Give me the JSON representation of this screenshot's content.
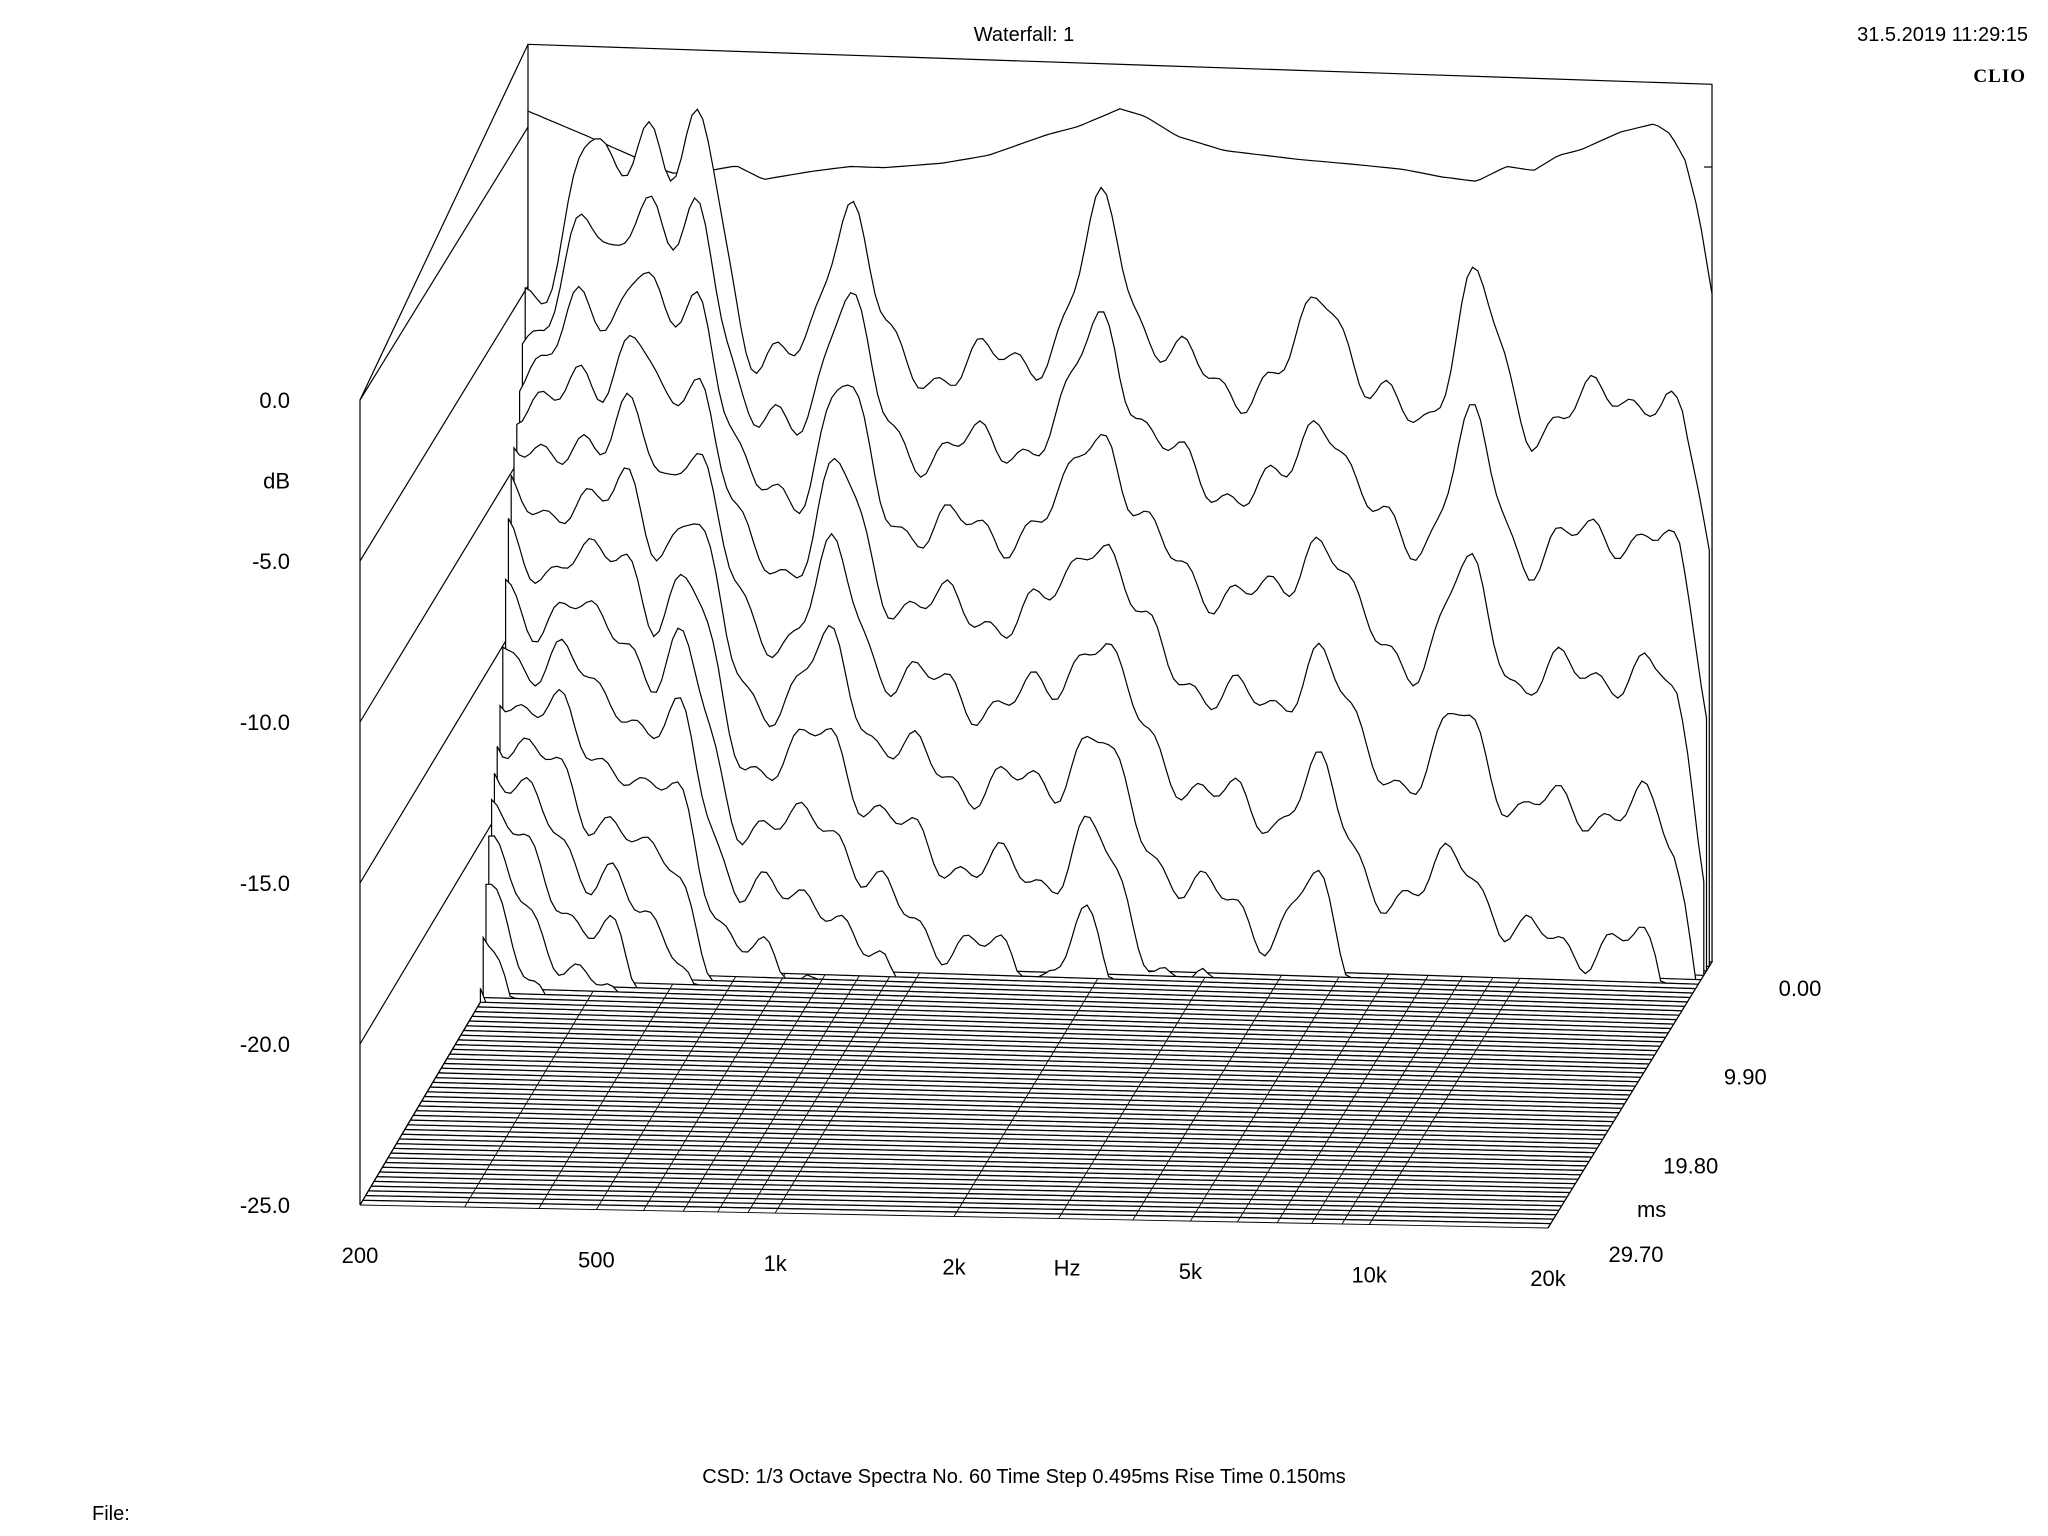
{
  "header": {
    "title": "Waterfall: 1",
    "timestamp": "31.5.2019 11:29:15",
    "brand": "CLIO"
  },
  "footer": {
    "info": "CSD:   1/3 Octave   Spectra No. 60   Time Step 0.495ms   Rise Time 0.150ms",
    "file_label": "File:"
  },
  "chart_data": {
    "type": "waterfall",
    "title": "Waterfall: 1",
    "x_axis": {
      "label": "Hz",
      "scale": "log",
      "range": [
        200,
        20000
      ],
      "ticks": [
        {
          "value": 200,
          "label": "200"
        },
        {
          "value": 500,
          "label": "500"
        },
        {
          "value": 1000,
          "label": "1k"
        },
        {
          "value": 2000,
          "label": "2k"
        },
        {
          "value": 5000,
          "label": "5k"
        },
        {
          "value": 10000,
          "label": "10k"
        },
        {
          "value": 20000,
          "label": "20k"
        }
      ]
    },
    "y_axis": {
      "label": "dB",
      "range": [
        -25,
        0
      ],
      "ticks": [
        {
          "value": 0,
          "label": "0.0"
        },
        {
          "value": -5,
          "label": "-5.0"
        },
        {
          "value": -10,
          "label": "-10.0"
        },
        {
          "value": -15,
          "label": "-15.0"
        },
        {
          "value": -20,
          "label": "-20.0"
        },
        {
          "value": -25,
          "label": "-25.0"
        }
      ]
    },
    "z_axis": {
      "label": "ms",
      "range": [
        0,
        29.7
      ],
      "ticks": [
        {
          "value": 0,
          "label": "0.00"
        },
        {
          "value": 9.9,
          "label": "9.90"
        },
        {
          "value": 19.8,
          "label": "19.80"
        },
        {
          "value": 29.7,
          "label": "29.70"
        }
      ]
    },
    "spectra_count": 60,
    "time_step_ms": 0.495,
    "rise_time_ms": 0.15,
    "smoothing": "1/3 Octave",
    "first_spectrum_db": [
      {
        "f": 200,
        "db": 0.5
      },
      {
        "f": 250,
        "db": -0.2
      },
      {
        "f": 300,
        "db": -0.8
      },
      {
        "f": 350,
        "db": -1.3
      },
      {
        "f": 400,
        "db": -1.2
      },
      {
        "f": 450,
        "db": -1.0
      },
      {
        "f": 500,
        "db": -1.4
      },
      {
        "f": 600,
        "db": -1.1
      },
      {
        "f": 700,
        "db": -0.9
      },
      {
        "f": 800,
        "db": -0.9
      },
      {
        "f": 1000,
        "db": -0.7
      },
      {
        "f": 1200,
        "db": -0.4
      },
      {
        "f": 1500,
        "db": 0.3
      },
      {
        "f": 1700,
        "db": 0.6
      },
      {
        "f": 2000,
        "db": 1.2
      },
      {
        "f": 2200,
        "db": 1.0
      },
      {
        "f": 2500,
        "db": 0.4
      },
      {
        "f": 3000,
        "db": 0.0
      },
      {
        "f": 4000,
        "db": -0.2
      },
      {
        "f": 5000,
        "db": -0.3
      },
      {
        "f": 6000,
        "db": -0.4
      },
      {
        "f": 7000,
        "db": -0.6
      },
      {
        "f": 8000,
        "db": -0.7
      },
      {
        "f": 9000,
        "db": -0.2
      },
      {
        "f": 10000,
        "db": -0.3
      },
      {
        "f": 11000,
        "db": 0.2
      },
      {
        "f": 12000,
        "db": 0.4
      },
      {
        "f": 14000,
        "db": 1.0
      },
      {
        "f": 16000,
        "db": 1.3
      },
      {
        "f": 17000,
        "db": 1.0
      },
      {
        "f": 18000,
        "db": 0.2
      },
      {
        "f": 19000,
        "db": -1.5
      },
      {
        "f": 20000,
        "db": -4.0
      }
    ],
    "resonance_peaks_hz": [
      260,
      320,
      400,
      700,
      1900,
      4500,
      8000
    ]
  }
}
